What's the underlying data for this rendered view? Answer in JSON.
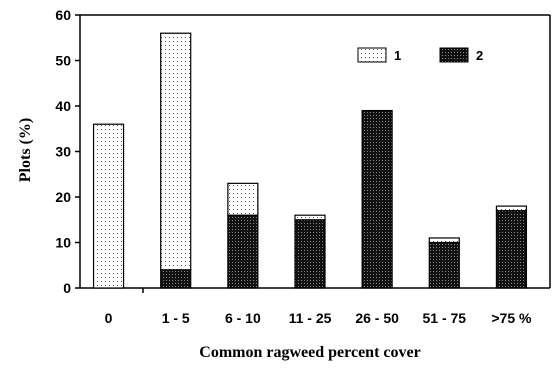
{
  "chart_data": {
    "type": "bar",
    "stacked": true,
    "categories": [
      "0",
      "1 - 5",
      "6 - 10",
      "11 - 25",
      "26 - 50",
      "51 - 75",
      ">75 %"
    ],
    "series": [
      {
        "name": "1",
        "values": [
          36,
          52,
          7,
          1,
          0,
          1,
          1
        ],
        "pattern": "light-dotted"
      },
      {
        "name": "2",
        "values": [
          0,
          4,
          16,
          15,
          39,
          10,
          17
        ],
        "pattern": "dark-dotted"
      }
    ],
    "xlabel": "Common ragweed percent cover",
    "ylabel": "Plots (%)",
    "ylim": [
      0,
      60
    ],
    "yticks": [
      0,
      10,
      20,
      30,
      40,
      50,
      60
    ],
    "grid": false,
    "legend_position": "top-right",
    "colors": {
      "light": "#ffffff",
      "dark": "#1a1a1a",
      "stroke": "#000000"
    }
  }
}
